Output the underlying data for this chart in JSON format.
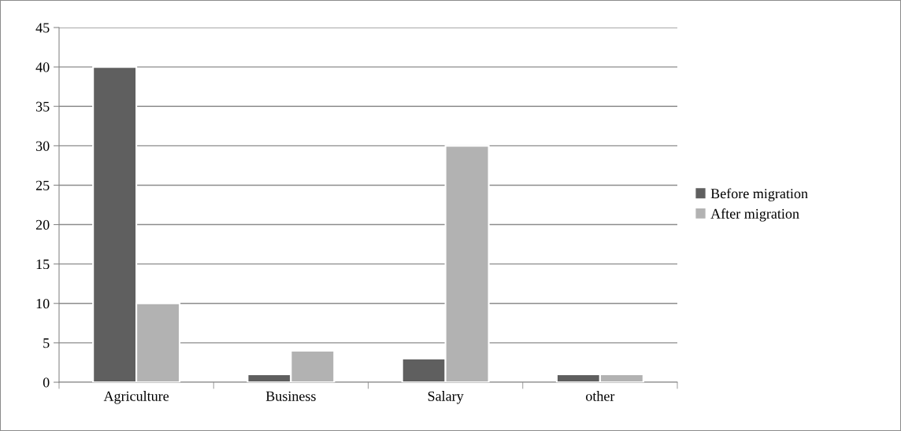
{
  "chart_data": {
    "type": "bar",
    "categories": [
      "Agriculture",
      "Business",
      "Salary",
      "other"
    ],
    "series": [
      {
        "name": "Before migration",
        "color": "#5f5f5f",
        "values": [
          40,
          1,
          3,
          1
        ]
      },
      {
        "name": "After migration",
        "color": "#b2b2b2",
        "values": [
          10,
          4,
          30,
          1
        ]
      }
    ],
    "ylim": [
      0,
      45
    ],
    "yticks": [
      0,
      5,
      10,
      15,
      20,
      25,
      30,
      35,
      40,
      45
    ],
    "grid": "y",
    "legend": "right"
  }
}
